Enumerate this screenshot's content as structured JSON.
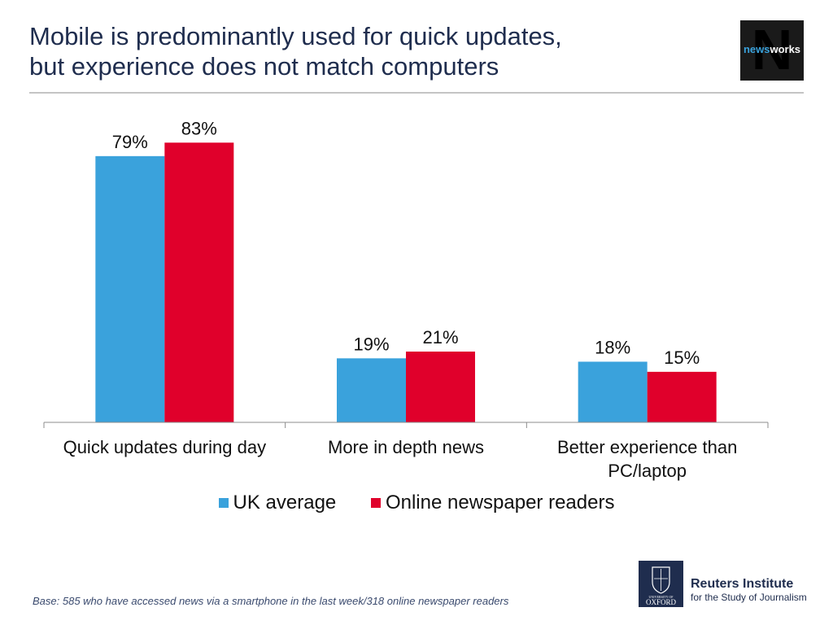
{
  "header": {
    "title_line1": "Mobile is predominantly used for quick updates,",
    "title_line2": "but experience does not match computers"
  },
  "logos": {
    "newsworks": {
      "prefix": "news",
      "suffix": "works",
      "letter": "N"
    },
    "oxford": {
      "top_text": "UNIVERSITY OF",
      "bottom_text": "OXFORD"
    },
    "reuters": {
      "name": "Reuters Institute",
      "subtitle": "for the Study of Journalism"
    }
  },
  "footnote": "Base: 585 who have accessed news via a smartphone in the last week/318 online newspaper readers",
  "colors": {
    "uk_average": "#3aa2dc",
    "online_newspaper_readers": "#e0002b",
    "title": "#1f2d4e"
  },
  "chart_data": {
    "type": "bar",
    "title": "",
    "xlabel": "",
    "ylabel": "",
    "ylim": [
      0,
      85
    ],
    "grid": false,
    "legend_position": "bottom",
    "categories": [
      [
        "Quick updates during day"
      ],
      [
        "More in depth news"
      ],
      [
        "Better experience than",
        "PC/laptop"
      ]
    ],
    "series": [
      {
        "name": "UK average",
        "values": [
          79,
          19,
          18
        ],
        "labels": [
          "79%",
          "19%",
          "18%"
        ]
      },
      {
        "name": "Online newspaper readers",
        "values": [
          83,
          21,
          15
        ],
        "labels": [
          "83%",
          "21%",
          "15%"
        ]
      }
    ]
  }
}
